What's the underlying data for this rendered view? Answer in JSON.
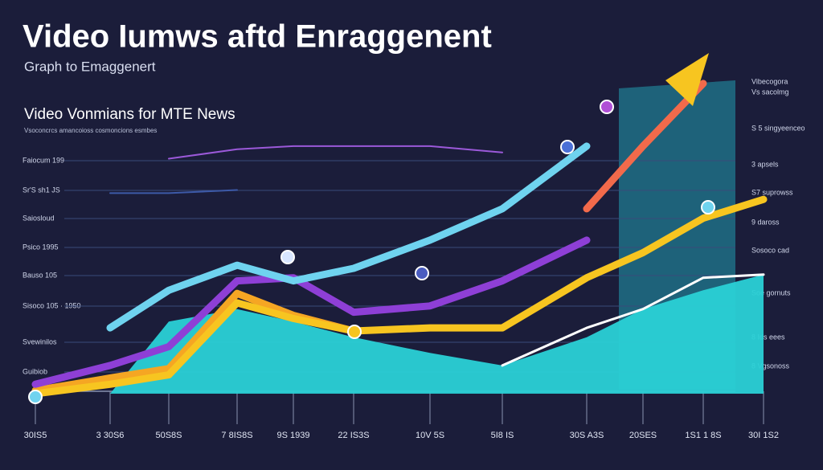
{
  "chart_data": {
    "type": "line",
    "title": "Video Iumws aftd Enraggenent",
    "subtitle": "Graph to Emaggenert",
    "heading": "Video Vonmians for MTE News",
    "note": "Vsoconcrcs amancoioss cosmoncions esmbes",
    "left_labels": [
      "Faiocum 199",
      "Sr'S sh1 JS",
      "Saiosloud",
      "Psico 1995",
      "Bauso 105",
      "Sisoco 105 · 1950",
      "Svewinilos",
      "Guibiob"
    ],
    "right_labels": [
      "Vibecogora",
      "Vs sacolmg",
      "S 5 singyeenceo",
      "3 apsels",
      "S7 suprowss",
      "9 daross",
      "Sosoco cad",
      "Soe gornuts",
      "8 Ids eees",
      "8 Vgsonoss"
    ],
    "categories": [
      "30IS5",
      "3 30S6",
      "50S8S",
      "7 8IS8S",
      "9S 1939",
      "22 IS3S",
      "10V 5S",
      "5I8 IS",
      "30S A3S",
      "20SES",
      "1S1 1 8S",
      "30I 1S2"
    ],
    "ylim": [
      0,
      100
    ],
    "series": [
      {
        "color": "#2ad1d6",
        "area": true,
        "values": [
          0,
          0,
          23,
          27,
          23,
          18,
          13,
          9,
          18,
          27,
          33,
          38
        ]
      },
      {
        "color": "#f5a623",
        "values": [
          1,
          5,
          8,
          32,
          25,
          20,
          null,
          null,
          null,
          null,
          null,
          null
        ]
      },
      {
        "color": "#f7c520",
        "values": [
          0,
          3,
          6,
          29,
          24,
          20,
          21,
          21,
          37,
          45,
          56,
          62
        ]
      },
      {
        "color": "#8e3fd6",
        "values": [
          3,
          9,
          15,
          36,
          37,
          26,
          28,
          36,
          49,
          null,
          null,
          null
        ]
      },
      {
        "color": "#f26a4b",
        "values": [
          null,
          null,
          null,
          null,
          null,
          null,
          null,
          null,
          59,
          79,
          99,
          null
        ]
      },
      {
        "color": "#6fd3ef",
        "values": [
          null,
          21,
          33,
          41,
          36,
          40,
          49,
          59,
          79,
          null,
          null,
          null
        ]
      },
      {
        "color": "#ffffff",
        "values": [
          null,
          null,
          null,
          null,
          null,
          null,
          null,
          9,
          21,
          27,
          37,
          38
        ]
      },
      {
        "color": "#9b59d9",
        "values": [
          null,
          null,
          75,
          78,
          79,
          79,
          79,
          77,
          null,
          null,
          null,
          null
        ]
      },
      {
        "color": "#3d5aa8",
        "values": [
          null,
          64,
          64,
          65,
          null,
          null,
          null,
          null,
          null,
          null,
          null,
          null
        ]
      }
    ]
  }
}
